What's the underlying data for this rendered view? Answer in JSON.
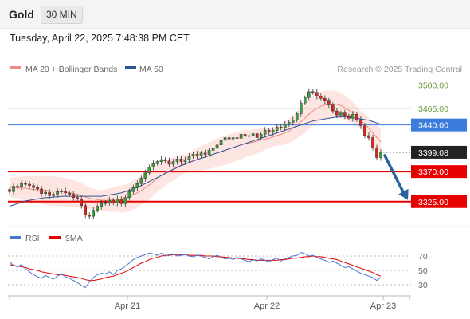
{
  "header": {
    "title": "Gold",
    "timeframe": "30 MIN"
  },
  "timestamp": "Tuesday, April 22, 2025 7:48:38 PM CET",
  "legend": [
    {
      "label": "MA 20 + Bollinger Bands",
      "color": "#f28b82"
    },
    {
      "label": "MA 50",
      "color": "#2b5797"
    }
  ],
  "research": "Research © 2025 Trading Central",
  "chart_data": [
    {
      "type": "candlestick",
      "title": "Gold",
      "ylim": [
        3290,
        3515
      ],
      "x_ticks": [
        "Apr 21",
        "Apr 22",
        "Apr 23"
      ],
      "last_price": "3399.08",
      "levels": [
        {
          "value": 3500.0,
          "label": "3500.00",
          "role": "resistance",
          "color": "#9bc58c"
        },
        {
          "value": 3465.0,
          "label": "3465.00",
          "role": "resistance",
          "color": "#9bc58c"
        },
        {
          "value": 3440.0,
          "label": "3440.00",
          "role": "pivot",
          "color": "#3b7ddd"
        },
        {
          "value": 3370.0,
          "label": "3370.00",
          "role": "support",
          "color": "#e60000"
        },
        {
          "value": 3325.0,
          "label": "3325.00",
          "role": "support",
          "color": "#e60000"
        }
      ],
      "close": [
        3340,
        3348,
        3347,
        3352,
        3351,
        3349,
        3346,
        3344,
        3337,
        3339,
        3334,
        3336,
        3340,
        3341,
        3338,
        3336,
        3331,
        3329,
        3319,
        3305,
        3303,
        3312,
        3318,
        3322,
        3324,
        3327,
        3323,
        3329,
        3322,
        3331,
        3340,
        3346,
        3352,
        3360,
        3368,
        3377,
        3382,
        3385,
        3388,
        3386,
        3381,
        3385,
        3389,
        3385,
        3388,
        3393,
        3396,
        3394,
        3398,
        3396,
        3402,
        3405,
        3410,
        3417,
        3421,
        3419,
        3421,
        3420,
        3426,
        3423,
        3424,
        3427,
        3421,
        3426,
        3432,
        3429,
        3432,
        3437,
        3436,
        3441,
        3444,
        3447,
        3457,
        3473,
        3481,
        3490,
        3489,
        3483,
        3480,
        3476,
        3470,
        3461,
        3455,
        3458,
        3454,
        3450,
        3456,
        3448,
        3439,
        3424,
        3421,
        3406,
        3391,
        3399
      ],
      "ma20": [
        3346,
        3346,
        3346,
        3345,
        3345,
        3344,
        3343,
        3343,
        3342,
        3342,
        3341,
        3341,
        3340,
        3340,
        3339,
        3338,
        3337,
        3336,
        3334,
        3332,
        3330,
        3329,
        3328,
        3327,
        3327,
        3327,
        3328,
        3329,
        3329,
        3330,
        3332,
        3335,
        3338,
        3342,
        3346,
        3350,
        3355,
        3360,
        3364,
        3368,
        3371,
        3374,
        3377,
        3380,
        3382,
        3384,
        3386,
        3388,
        3390,
        3392,
        3394,
        3396,
        3398,
        3400,
        3402,
        3404,
        3406,
        3408,
        3410,
        3412,
        3413,
        3414,
        3416,
        3417,
        3419,
        3420,
        3422,
        3424,
        3426,
        3428,
        3431,
        3435,
        3440,
        3445,
        3450,
        3456,
        3461,
        3465,
        3468,
        3470,
        3471,
        3471,
        3471,
        3469,
        3466,
        3462,
        3458,
        3453,
        3447,
        3441,
        3435,
        3428,
        3421,
        3415
      ],
      "ma50": [
        3318,
        3320,
        3322,
        3324,
        3326,
        3327,
        3328,
        3329,
        3330,
        3331,
        3331,
        3332,
        3332,
        3333,
        3333,
        3333,
        3333,
        3333,
        3333,
        3333,
        3333,
        3333,
        3333,
        3333,
        3334,
        3335,
        3336,
        3337,
        3338,
        3340,
        3342,
        3344,
        3346,
        3349,
        3352,
        3355,
        3358,
        3361,
        3364,
        3367,
        3370,
        3373,
        3376,
        3379,
        3381,
        3384,
        3386,
        3388,
        3390,
        3392,
        3394,
        3396,
        3398,
        3400,
        3402,
        3404,
        3406,
        3408,
        3410,
        3412,
        3414,
        3416,
        3418,
        3420,
        3422,
        3424,
        3426,
        3428,
        3430,
        3432,
        3434,
        3436,
        3438,
        3440,
        3442,
        3444,
        3446,
        3447,
        3448,
        3449,
        3450,
        3451,
        3452,
        3452,
        3452,
        3452,
        3451,
        3450,
        3449,
        3448,
        3447,
        3445,
        3443,
        3441
      ]
    },
    {
      "type": "line",
      "title": "RSI",
      "ylim": [
        20,
        80
      ],
      "y_ticks": [
        "70",
        "50",
        "30"
      ],
      "legend": [
        {
          "label": "RSI",
          "color": "#4a76d0"
        },
        {
          "label": "9MA",
          "color": "#e60000"
        }
      ],
      "rsi": [
        62,
        57,
        55,
        58,
        52,
        48,
        44,
        41,
        39,
        43,
        40,
        38,
        42,
        45,
        41,
        39,
        36,
        33,
        29,
        26,
        34,
        40,
        44,
        46,
        45,
        48,
        44,
        50,
        52,
        56,
        60,
        65,
        68,
        70,
        72,
        74,
        73,
        71,
        74,
        70,
        72,
        73,
        70,
        71,
        72,
        70,
        69,
        71,
        70,
        68,
        66,
        69,
        71,
        68,
        66,
        67,
        65,
        68,
        66,
        64,
        62,
        65,
        63,
        66,
        64,
        62,
        65,
        67,
        63,
        66,
        68,
        70,
        71,
        75,
        73,
        70,
        71,
        68,
        66,
        64,
        61,
        63,
        60,
        57,
        54,
        55,
        52,
        49,
        46,
        44,
        42,
        40,
        36,
        40
      ],
      "ma9": [
        58,
        57,
        56,
        55,
        54,
        52,
        51,
        50,
        48,
        47,
        46,
        45,
        44,
        44,
        43,
        42,
        41,
        40,
        39,
        37,
        36,
        36,
        37,
        38,
        40,
        41,
        42,
        44,
        46,
        48,
        51,
        54,
        57,
        60,
        62,
        65,
        67,
        68,
        70,
        71,
        71,
        72,
        72,
        72,
        72,
        71,
        71,
        71,
        71,
        70,
        70,
        70,
        69,
        69,
        68,
        68,
        67,
        67,
        66,
        66,
        65,
        65,
        64,
        64,
        64,
        64,
        64,
        64,
        65,
        65,
        66,
        67,
        67,
        68,
        69,
        69,
        70,
        69,
        69,
        68,
        67,
        66,
        65,
        63,
        61,
        59,
        57,
        55,
        53,
        51,
        49,
        47,
        44,
        42
      ]
    }
  ]
}
